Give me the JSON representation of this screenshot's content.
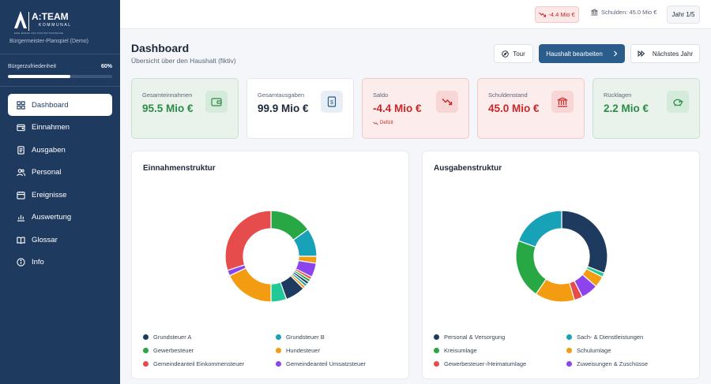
{
  "sidebar": {
    "logo_text": "A:TEAM",
    "logo_sub": "KOMMUNAL",
    "logo_tagline": "EINE MARKE VON ZUKUNFTSKOMMUNE",
    "subtitle": "Bürgermeister-Planspiel (Demo)",
    "satisfaction_label": "Bürgerzufriedenheit",
    "satisfaction_value": "60%",
    "satisfaction_fraction": 0.6,
    "items": [
      {
        "label": "Dashboard",
        "icon": "dashboard-icon",
        "active": true
      },
      {
        "label": "Einnahmen",
        "icon": "wallet-icon"
      },
      {
        "label": "Ausgaben",
        "icon": "receipt-icon"
      },
      {
        "label": "Personal",
        "icon": "people-icon"
      },
      {
        "label": "Ereignisse",
        "icon": "calendar-icon"
      },
      {
        "label": "Auswertung",
        "icon": "bar-chart-icon"
      },
      {
        "label": "Glossar",
        "icon": "book-icon"
      },
      {
        "label": "Info",
        "icon": "info-icon"
      }
    ]
  },
  "topbar": {
    "saldo": "-4.4 Mio €",
    "debt": "Schulden: 45.0 Mio €",
    "year": "Jahr 1/5"
  },
  "header": {
    "title": "Dashboard",
    "subtitle": "Übersicht über den Haushalt (fiktiv)",
    "tour_label": "Tour",
    "edit_label": "Haushalt bearbeiten",
    "next_label": "Nächstes Jahr"
  },
  "kpis": [
    {
      "label": "Gesamteinnahmen",
      "value": "95.5 Mio €",
      "icon": "wallet-icon"
    },
    {
      "label": "Gesamtausgaben",
      "value": "99.9 Mio €",
      "icon": "receipt-icon"
    },
    {
      "label": "Saldo",
      "value": "-4.4 Mio €",
      "icon": "trend-down-icon",
      "note": "Defizit"
    },
    {
      "label": "Schuldenstand",
      "value": "45.0 Mio €",
      "icon": "bank-icon"
    },
    {
      "label": "Rücklagen",
      "value": "2.2 Mio €",
      "icon": "piggy-bank-icon"
    }
  ],
  "colors": {
    "navy": "#1f3a5f",
    "green": "#2e8b46",
    "red": "#c62828",
    "primary": "#2b5d8c"
  },
  "chart_data": [
    {
      "type": "pie",
      "title": "Einnahmenstruktur",
      "legend": [
        {
          "name": "Grundsteuer A",
          "color": "#1f3a5f"
        },
        {
          "name": "Grundsteuer B",
          "color": "#17a2b8"
        },
        {
          "name": "Gewerbesteuer",
          "color": "#28a745"
        },
        {
          "name": "Hundesteuer",
          "color": "#f39c12"
        },
        {
          "name": "Gemeindeanteil Einkommensteuer",
          "color": "#e74c4c"
        },
        {
          "name": "Gemeindeanteil Umsatzsteuer",
          "color": "#8e44ec"
        }
      ],
      "slices": [
        {
          "value": 15,
          "color": "#28a745"
        },
        {
          "value": 10,
          "color": "#17a2b8"
        },
        {
          "value": 2.5,
          "color": "#f39c12"
        },
        {
          "value": 5,
          "color": "#8e44ec"
        },
        {
          "value": 1,
          "color": "#e74c4c"
        },
        {
          "value": 1,
          "color": "#28a745"
        },
        {
          "value": 1,
          "color": "#1f3a5f"
        },
        {
          "value": 1,
          "color": "#17a2b8"
        },
        {
          "value": 1,
          "color": "#f39c12"
        },
        {
          "value": 7,
          "color": "#1f3a5f"
        },
        {
          "value": 5.5,
          "color": "#20c997"
        },
        {
          "value": 18,
          "color": "#f39c12"
        },
        {
          "value": 2,
          "color": "#8e44ec"
        },
        {
          "value": 30,
          "color": "#e74c4c"
        }
      ]
    },
    {
      "type": "pie",
      "title": "Ausgabenstruktur",
      "legend": [
        {
          "name": "Personal & Versorgung",
          "color": "#1f3a5f"
        },
        {
          "name": "Sach- & Dienstleistungen",
          "color": "#17a2b8"
        },
        {
          "name": "Kreisumlage",
          "color": "#28a745"
        },
        {
          "name": "Schulumlage",
          "color": "#f39c12"
        },
        {
          "name": "Gewerbesteuer-/Heimatumlage",
          "color": "#e74c4c"
        },
        {
          "name": "Zuweisungen & Zuschüsse",
          "color": "#8e44ec"
        }
      ],
      "slices": [
        {
          "value": 31,
          "color": "#1f3a5f"
        },
        {
          "value": 1.5,
          "color": "#20c997"
        },
        {
          "value": 4,
          "color": "#f39c12"
        },
        {
          "value": 6,
          "color": "#8e44ec"
        },
        {
          "value": 3,
          "color": "#e74c4c"
        },
        {
          "value": 14,
          "color": "#f39c12"
        },
        {
          "value": 21,
          "color": "#28a745"
        },
        {
          "value": 19.5,
          "color": "#17a2b8"
        }
      ]
    }
  ]
}
